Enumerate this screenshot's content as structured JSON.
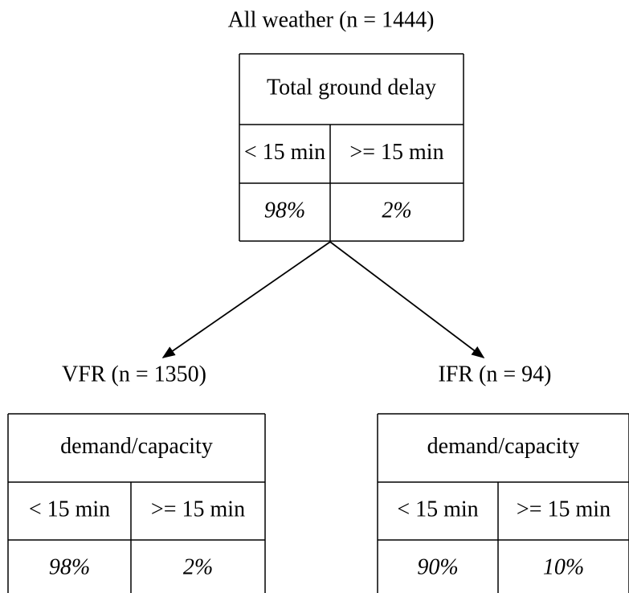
{
  "nodes": [
    {
      "title": "All weather (n = 1444)",
      "header": "Total ground delay",
      "columns": [
        "< 15 min",
        ">= 15 min"
      ],
      "values": [
        "98%",
        "2%"
      ]
    },
    {
      "title": "VFR (n = 1350)",
      "header": "demand/capacity",
      "columns": [
        "< 15 min",
        ">= 15 min"
      ],
      "values": [
        "98%",
        "2%"
      ]
    },
    {
      "title": "IFR (n = 94)",
      "header": "demand/capacity",
      "columns": [
        "< 15 min",
        ">= 15 min"
      ],
      "values": [
        "90%",
        "10%"
      ]
    }
  ]
}
